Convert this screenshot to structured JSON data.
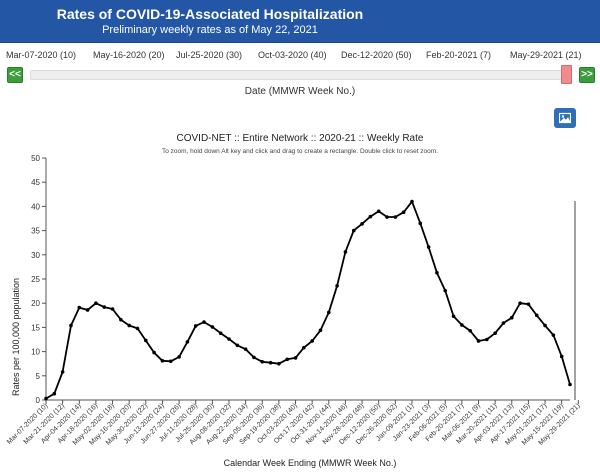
{
  "header": {
    "title": "Rates of COVID-19-Associated Hospitalization",
    "subtitle": "Preliminary weekly rates as of May 22, 2021"
  },
  "slider": {
    "labels": [
      "Mar-07-2020 (10)",
      "May-16-2020 (20)",
      "Jul-25-2020 (30)",
      "Oct-03-2020 (40)",
      "Dec-12-2020 (50)",
      "Feb-20-2021 (7)",
      "May-29-2021 (21)"
    ],
    "prev_label": "<<",
    "next_label": ">>",
    "caption": "Date (MMWR Week No.)",
    "selected_position": 0.98
  },
  "export": {
    "icon": "image-icon"
  },
  "chart_data": {
    "type": "line",
    "title": "COVID-NET :: Entire Network :: 2020-21 :: Weekly Rate",
    "subtitle": "To zoom, hold down Alt key and click and drag to create a rectangle. Double click to reset zoom.",
    "xlabel": "Calendar Week Ending (MMWR Week No.)",
    "ylabel": "Rates per 100,000 population",
    "ylim": [
      0,
      50
    ],
    "yticks": [
      0,
      5,
      10,
      15,
      20,
      25,
      30,
      35,
      40,
      45,
      50
    ],
    "grid": false,
    "legend": "none",
    "line_color": "#000000",
    "tick_labels": [
      "Mar-07-2020 (10)",
      "Mar-21-2020 (12)",
      "Apr-04-2020 (14)",
      "Apr-18-2020 (16)",
      "May-02-2020 (18)",
      "May-16-2020 (20)",
      "May-30-2020 (22)",
      "Jun-13-2020 (24)",
      "Jun-27-2020 (26)",
      "Jul-11-2020 (28)",
      "Jul-25-2020 (30)",
      "Aug-08-2020 (32)",
      "Aug-22-2020 (34)",
      "Sep-05-2020 (36)",
      "Sep-19-2020 (38)",
      "Oct-03-2020 (40)",
      "Oct-17-2020 (42)",
      "Oct-31-2020 (44)",
      "Nov-14-2020 (46)",
      "Nov-28-2020 (48)",
      "Dec-12-2020 (50)",
      "Dec-26-2020 (52)",
      "Jan-09-2021 (1)",
      "Jan-23-2021 (3)",
      "Feb-06-2021 (5)",
      "Feb-20-2021 (7)",
      "Mar-06-2021 (9)",
      "Mar-20-2021 (11)",
      "Apr-03-2021 (13)",
      "Apr-17-2021 (15)",
      "May-01-2021 (17)",
      "May-15-2021 (19)",
      "May-29-2021 (21)"
    ],
    "values": [
      0.3,
      1.3,
      5.8,
      15.4,
      19.1,
      18.6,
      20.0,
      19.2,
      18.8,
      16.6,
      15.4,
      14.8,
      12.3,
      9.8,
      8.1,
      8.0,
      8.9,
      12.0,
      15.3,
      16.1,
      15.1,
      13.8,
      12.6,
      11.3,
      10.5,
      8.8,
      7.9,
      7.7,
      7.5,
      8.4,
      8.7,
      10.8,
      12.2,
      14.4,
      18.1,
      23.6,
      30.6,
      35.0,
      36.4,
      37.9,
      39.0,
      37.8,
      37.8,
      38.8,
      41.0,
      36.5,
      31.6,
      26.3,
      22.6,
      17.3,
      15.5,
      14.3,
      12.2,
      12.5,
      13.8,
      15.9,
      17.0,
      20.0,
      19.8,
      17.5,
      15.4,
      13.4,
      9.0,
      3.2
    ]
  }
}
